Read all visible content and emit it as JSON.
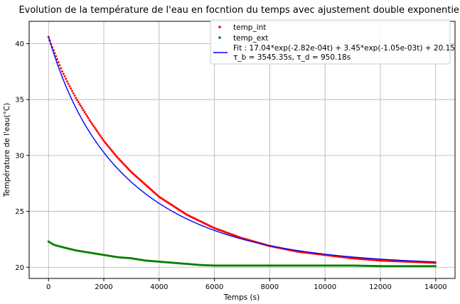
{
  "chart_data": {
    "type": "scatter",
    "title": "Evolution de la température de l'eau en focntion du temps avec ajustement double exponentiel",
    "xlabel": "Temps (s)",
    "ylabel": "Température de l'eau(°C)",
    "xlim": [
      -700,
      14700
    ],
    "ylim": [
      19.0,
      42.0
    ],
    "x_ticks": [
      0,
      2000,
      4000,
      6000,
      8000,
      10000,
      12000,
      14000
    ],
    "y_ticks": [
      20,
      25,
      30,
      35,
      40
    ],
    "grid": true,
    "legend_position": "top-right",
    "series": [
      {
        "name": "temp_int",
        "kind": "scatter",
        "color": "#ff0000",
        "x": [
          0,
          100,
          200,
          300,
          400,
          500,
          700,
          1000,
          1500,
          2000,
          2500,
          3000,
          3500,
          4000,
          5000,
          6000,
          7000,
          8000,
          9000,
          10000,
          11000,
          12000,
          13000,
          14000
        ],
        "y": [
          40.6,
          39.9,
          39.3,
          38.7,
          38.1,
          37.5,
          36.5,
          35.1,
          33.1,
          31.3,
          29.8,
          28.5,
          27.4,
          26.3,
          24.7,
          23.5,
          22.6,
          21.9,
          21.4,
          21.1,
          20.8,
          20.6,
          20.5,
          20.4
        ]
      },
      {
        "name": "temp_ext",
        "kind": "scatter",
        "color": "#008000",
        "x": [
          0,
          200,
          500,
          1000,
          1500,
          2000,
          2500,
          3000,
          3500,
          4000,
          4500,
          5000,
          5500,
          6000,
          7000,
          8000,
          9000,
          10000,
          11000,
          12000,
          13000,
          14000
        ],
        "y": [
          22.3,
          22.0,
          21.8,
          21.5,
          21.3,
          21.1,
          20.9,
          20.8,
          20.6,
          20.5,
          20.4,
          20.3,
          20.2,
          20.15,
          20.15,
          20.15,
          20.15,
          20.15,
          20.15,
          20.1,
          20.1,
          20.1
        ]
      },
      {
        "name": "Fit : 17.04*exp(-2.82e-04t) + 3.45*exp(-1.05e-03t) + 20.15",
        "name_line2": "τ_b = 3545.35s, τ_d = 950.18s",
        "kind": "line",
        "color": "#0000ff",
        "model": {
          "a": 17.04,
          "k1": 0.000282,
          "b": 3.45,
          "k2": 0.00105,
          "c": 20.15
        },
        "x_range": [
          0,
          14000
        ]
      }
    ]
  }
}
